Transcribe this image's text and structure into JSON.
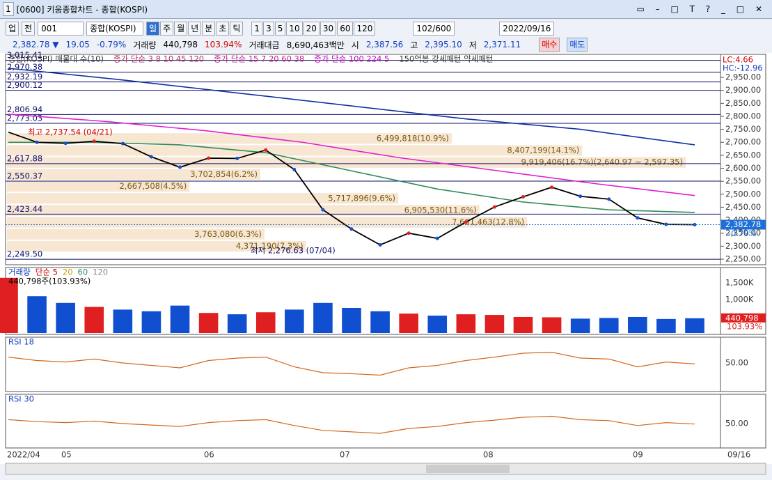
{
  "window": {
    "number": "1",
    "title": "[0600] 키움종합차트 - 종합(KOSPI)"
  },
  "toolbar": {
    "market": "업",
    "scope": "전",
    "code": "001",
    "name": "종합(KOSPI)",
    "periods": [
      "일",
      "주",
      "월",
      "년",
      "분",
      "초",
      "틱"
    ],
    "intervals": [
      "1",
      "3",
      "5",
      "10",
      "20",
      "30",
      "60",
      "120"
    ],
    "count": "102/600",
    "date": "2022/09/16"
  },
  "info": {
    "price": "2,382.78 ▼",
    "change": "19.05",
    "rate": "-0.79%",
    "volume_label": "거래량",
    "volume": "440,798",
    "volume_rate": "103.94%",
    "amount_label": "거래대금",
    "amount": "8,690,463백만",
    "open_label": "시",
    "open": "2,387.56",
    "high_label": "고",
    "high": "2,395.10",
    "low_label": "저",
    "low": "2,371.11",
    "buy": "매수",
    "sell": "매도"
  },
  "price_pane": {
    "legend": [
      {
        "text": "종합(KOSPI) 매물대 수(10)",
        "color": "#333333"
      },
      {
        "text": "종가 단순 3 8 10 45 120",
        "color": "#b03060"
      },
      {
        "text": "종가 단순 15 7 20 60 38",
        "color": "#c0208a"
      },
      {
        "text": "종가 단순 100 224 5",
        "color": "#c000c0"
      },
      {
        "text": "150억봉 강세패턴 약세패턴",
        "color": "#333333"
      }
    ],
    "corner_labels": {
      "lc": "LC:4.66",
      "hc": "HC:-12.96"
    },
    "level_lines": [
      {
        "value": 3015.41,
        "label": "3,015.41"
      },
      {
        "value": 2970.38,
        "label": "2,970.38"
      },
      {
        "value": 2932.19,
        "label": "2,932.19"
      },
      {
        "value": 2900.12,
        "label": "2,900.12"
      },
      {
        "value": 2806.94,
        "label": "2,806.94"
      },
      {
        "value": 2773.03,
        "label": "2,773.03"
      },
      {
        "value": 2617.88,
        "label": "2,617.88"
      },
      {
        "value": 2550.37,
        "label": "2,550.37"
      },
      {
        "value": 2423.44,
        "label": "2,423.44"
      },
      {
        "value": 2249.5,
        "label": "2,249.50"
      }
    ],
    "yticks": [
      {
        "value": 2950,
        "label": "2,950.00"
      },
      {
        "value": 2900,
        "label": "2,900.00"
      },
      {
        "value": 2850,
        "label": "2,850.00"
      },
      {
        "value": 2800,
        "label": "2,800.00"
      },
      {
        "value": 2750,
        "label": "2,750.00"
      },
      {
        "value": 2700,
        "label": "2,700.00"
      },
      {
        "value": 2650,
        "label": "2,650.00"
      },
      {
        "value": 2600,
        "label": "2,600.00"
      },
      {
        "value": 2550,
        "label": "2,550.00"
      },
      {
        "value": 2500,
        "label": "2,500.00"
      },
      {
        "value": 2450,
        "label": "2,450.00"
      },
      {
        "value": 2400,
        "label": "2,400.00"
      },
      {
        "value": 2350,
        "label": "2,350.00"
      },
      {
        "value": 2300,
        "label": "2,300.00"
      },
      {
        "value": 2250,
        "label": "2,250.00"
      }
    ],
    "current": {
      "value": 2382.78,
      "label": "2,382.78",
      "rate": "-0.79%"
    },
    "high_note": {
      "value": 2737.54,
      "label": "최고 2,737.54 (04/21)"
    },
    "low_note": {
      "value": 2276.63,
      "label": "최저 2,276.63 (07/04)"
    },
    "volume_profile": [
      {
        "volume": 6499818,
        "label": "6,499,818(10.9%)"
      },
      {
        "volume": 8407199,
        "label": "8,407,199(14.1%)"
      },
      {
        "volume": 9919406,
        "label": "9,919,406(16.7%)(2,640.97 ~ 2,597.35)"
      },
      {
        "volume": 3702854,
        "label": "3,702,854(6.2%)"
      },
      {
        "volume": 2667508,
        "label": "2,667,508(4.5%)"
      },
      {
        "volume": 5717896,
        "label": "5,717,896(9.6%)"
      },
      {
        "volume": 6905530,
        "label": "6,905,530(11.6%)"
      },
      {
        "volume": 7601463,
        "label": "7,601,463(12.8%)"
      },
      {
        "volume": 3763080,
        "label": "3,763,080(6.3%)"
      },
      {
        "volume": 4371190,
        "label": "4,371,190(7.3%)"
      }
    ],
    "closes": [
      2739,
      2700,
      2696,
      2704,
      2695,
      2644,
      2604,
      2639,
      2638,
      2670,
      2595,
      2440,
      2366,
      2305,
      2350,
      2330,
      2393,
      2451,
      2490,
      2527,
      2492,
      2481,
      2409,
      2384,
      2382.78
    ],
    "ma_lines": [
      {
        "color": "#1030a0",
        "values": [
          2985,
          2940,
          2890,
          2840,
          2790,
          2750,
          2690
        ]
      },
      {
        "color": "#e020d0",
        "values": [
          2808,
          2780,
          2745,
          2700,
          2640,
          2590,
          2540,
          2495
        ]
      },
      {
        "color": "#2e8b57",
        "values": [
          2700,
          2700,
          2690,
          2660,
          2590,
          2520,
          2470,
          2440,
          2430
        ]
      }
    ]
  },
  "volume_pane": {
    "legend": [
      "거래량",
      "단순 5",
      "20",
      "60",
      "120"
    ],
    "current_note": "440,798주(103.93%)",
    "current": {
      "value": 440798,
      "label": "440,798",
      "rate": "103.93%"
    },
    "yticks": [
      {
        "value": 1500000,
        "label": "1,500K"
      },
      {
        "value": 1000000,
        "label": "1,000K"
      }
    ],
    "values": [
      1650000,
      1100000,
      900000,
      780000,
      700000,
      650000,
      820000,
      600000,
      560000,
      620000,
      700000,
      900000,
      750000,
      650000,
      580000,
      520000,
      560000,
      540000,
      480000,
      470000,
      430000,
      450000,
      480000,
      420000,
      440798
    ]
  },
  "rsi_panes": [
    {
      "title": "RSI 18",
      "ytick": {
        "value": 50,
        "label": "50.00"
      },
      "values": [
        62,
        55,
        52,
        58,
        50,
        45,
        40,
        55,
        60,
        62,
        42,
        30,
        28,
        25,
        40,
        45,
        55,
        62,
        70,
        72,
        60,
        58,
        42,
        52,
        48
      ]
    },
    {
      "title": "RSI 30",
      "ytick": {
        "value": 50,
        "label": "50.00"
      },
      "values": [
        58,
        54,
        52,
        55,
        50,
        47,
        44,
        52,
        56,
        58,
        46,
        36,
        33,
        30,
        40,
        44,
        52,
        57,
        63,
        65,
        58,
        56,
        46,
        52,
        49
      ]
    }
  ],
  "x_axis": [
    "2022/04",
    "05",
    "06",
    "07",
    "08",
    "09",
    "09/16"
  ]
}
